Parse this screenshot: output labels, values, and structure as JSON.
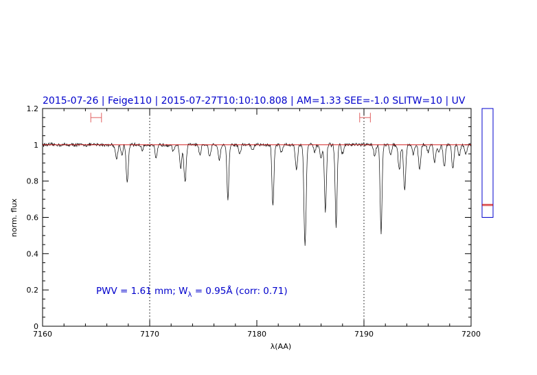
{
  "chart_data": {
    "type": "line",
    "title": "2015-07-26 | Feige110 | 2015-07-27T10:10:10.808 | AM=1.33 SEE=-1.0 SLITW=10 | UV",
    "xlabel": "λ(AA)",
    "ylabel": "norm. flux",
    "xlim": [
      7160,
      7200
    ],
    "ylim": [
      0,
      1.2
    ],
    "xticks": [
      7160,
      7170,
      7180,
      7190,
      7200
    ],
    "xtick_labels": [
      "7160",
      "7170",
      "7180",
      "7190",
      "7200"
    ],
    "yticks": [
      0,
      0.2,
      0.4,
      0.6,
      0.8,
      1,
      1.2
    ],
    "ytick_labels": [
      "0",
      "0.2",
      "0.4",
      "0.6",
      "0.8",
      "1",
      "1.2"
    ],
    "grid": false,
    "vertical_dotted_lines_x": [
      7170,
      7190
    ],
    "continuum_level": 1.0,
    "continuum_windows": [
      [
        7164.5,
        7165.5
      ],
      [
        7189.6,
        7190.6
      ]
    ],
    "annotation": {
      "pwv_label": "PWV = 1.61 mm;",
      "w_label": "W",
      "w_subscript": "λ",
      "w_value": " = 0.95Å (corr: 0.71)"
    },
    "side_indicator": {
      "range": [
        0.6,
        1.2
      ],
      "marker_values": [
        0.665,
        0.672
      ]
    },
    "absorption_lines": [
      {
        "x": 7166.9,
        "depth": 0.08,
        "width": 0.1
      },
      {
        "x": 7167.4,
        "depth": 0.06,
        "width": 0.08
      },
      {
        "x": 7167.9,
        "depth": 0.21,
        "width": 0.1
      },
      {
        "x": 7169.3,
        "depth": 0.03,
        "width": 0.1
      },
      {
        "x": 7170.6,
        "depth": 0.08,
        "width": 0.1
      },
      {
        "x": 7172.2,
        "depth": 0.04,
        "width": 0.1
      },
      {
        "x": 7172.9,
        "depth": 0.13,
        "width": 0.1
      },
      {
        "x": 7173.3,
        "depth": 0.21,
        "width": 0.1
      },
      {
        "x": 7174.7,
        "depth": 0.06,
        "width": 0.1
      },
      {
        "x": 7175.6,
        "depth": 0.07,
        "width": 0.1
      },
      {
        "x": 7176.5,
        "depth": 0.08,
        "width": 0.1
      },
      {
        "x": 7177.3,
        "depth": 0.3,
        "width": 0.09
      },
      {
        "x": 7178.4,
        "depth": 0.05,
        "width": 0.1
      },
      {
        "x": 7179.6,
        "depth": 0.03,
        "width": 0.1
      },
      {
        "x": 7181.5,
        "depth": 0.34,
        "width": 0.09
      },
      {
        "x": 7182.3,
        "depth": 0.04,
        "width": 0.1
      },
      {
        "x": 7183.7,
        "depth": 0.14,
        "width": 0.1
      },
      {
        "x": 7184.5,
        "depth": 0.56,
        "width": 0.1
      },
      {
        "x": 7185.4,
        "depth": 0.04,
        "width": 0.1
      },
      {
        "x": 7186.0,
        "depth": 0.08,
        "width": 0.1
      },
      {
        "x": 7186.4,
        "depth": 0.37,
        "width": 0.09
      },
      {
        "x": 7187.4,
        "depth": 0.45,
        "width": 0.09
      },
      {
        "x": 7188.0,
        "depth": 0.05,
        "width": 0.1
      },
      {
        "x": 7191.0,
        "depth": 0.06,
        "width": 0.1
      },
      {
        "x": 7191.6,
        "depth": 0.49,
        "width": 0.09
      },
      {
        "x": 7192.5,
        "depth": 0.05,
        "width": 0.1
      },
      {
        "x": 7193.3,
        "depth": 0.14,
        "width": 0.1
      },
      {
        "x": 7193.8,
        "depth": 0.25,
        "width": 0.1
      },
      {
        "x": 7194.6,
        "depth": 0.05,
        "width": 0.1
      },
      {
        "x": 7195.2,
        "depth": 0.14,
        "width": 0.1
      },
      {
        "x": 7196.0,
        "depth": 0.04,
        "width": 0.1
      },
      {
        "x": 7196.6,
        "depth": 0.1,
        "width": 0.1
      },
      {
        "x": 7197.0,
        "depth": 0.04,
        "width": 0.1
      },
      {
        "x": 7197.5,
        "depth": 0.12,
        "width": 0.1
      },
      {
        "x": 7198.3,
        "depth": 0.13,
        "width": 0.1
      },
      {
        "x": 7198.9,
        "depth": 0.06,
        "width": 0.1
      },
      {
        "x": 7199.5,
        "depth": 0.05,
        "width": 0.1
      }
    ],
    "noise_amplitude": 0.008,
    "colors": {
      "spectrum": "#000000",
      "continuum": "#cc0000",
      "title": "#0000cc",
      "annotation": "#0000cc",
      "windows": "#e06060",
      "side_box": "#0000cc",
      "side_marker": "#cc0000"
    }
  }
}
